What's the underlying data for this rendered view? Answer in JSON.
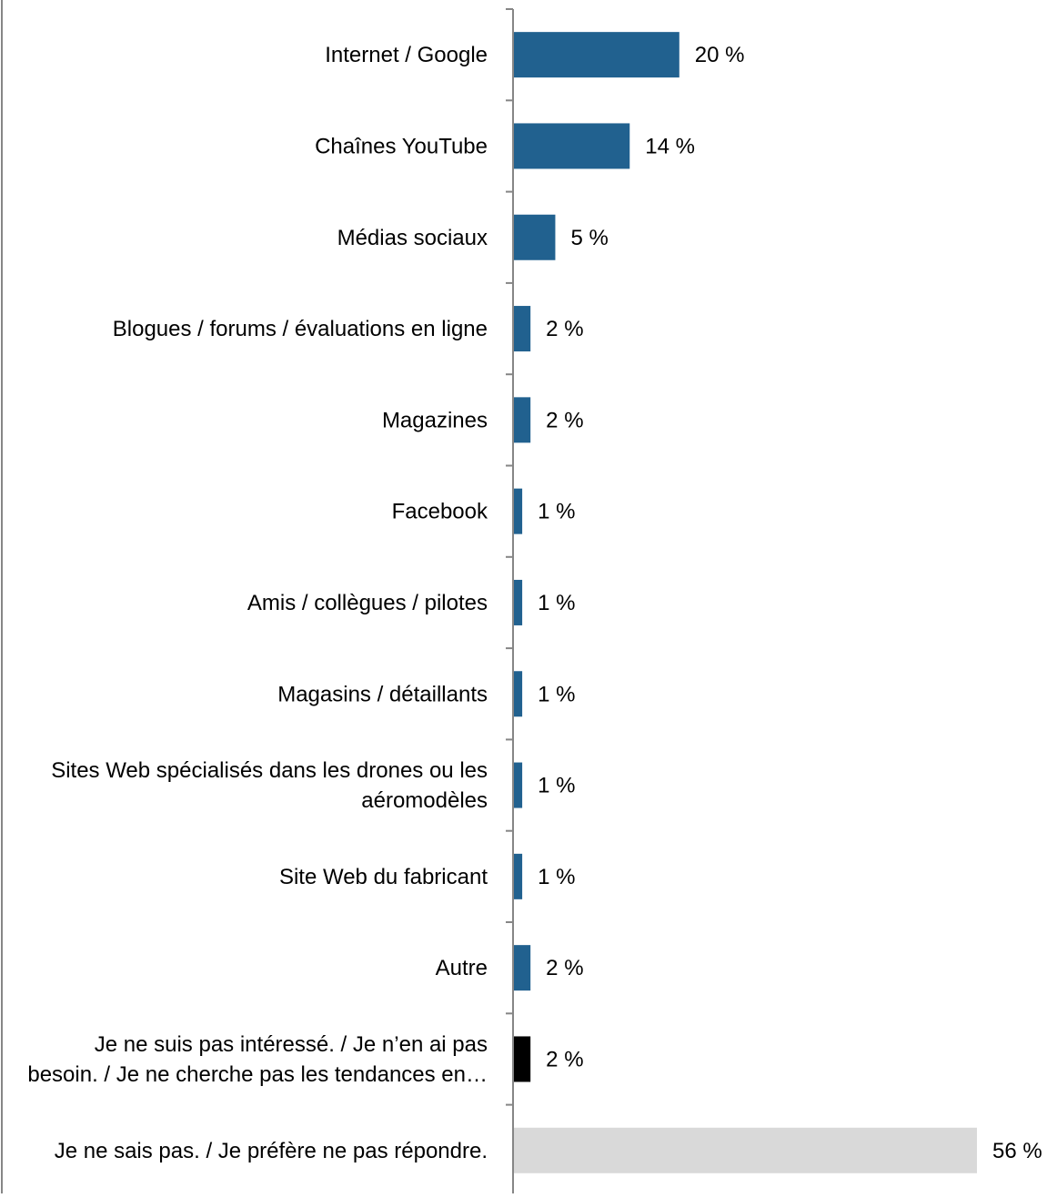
{
  "chart_data": {
    "type": "bar",
    "orientation": "horizontal",
    "categories": [
      [
        "Internet / Google"
      ],
      [
        "Chaînes YouTube"
      ],
      [
        "Médias sociaux"
      ],
      [
        "Blogues / forums / évaluations en ligne"
      ],
      [
        "Magazines"
      ],
      [
        "Facebook"
      ],
      [
        "Amis / collègues / pilotes"
      ],
      [
        "Magasins / détaillants"
      ],
      [
        "Sites Web spécialisés dans les drones ou les",
        "aéromodèles"
      ],
      [
        "Site Web du fabricant"
      ],
      [
        "Autre"
      ],
      [
        "Je ne suis pas intéressé. / Je n’en ai pas",
        "besoin. / Je ne cherche pas les tendances en…"
      ],
      [
        "Je ne sais pas. / Je préfère ne pas répondre."
      ]
    ],
    "values": [
      20,
      14,
      5,
      2,
      2,
      1,
      1,
      1,
      1,
      1,
      2,
      2,
      56
    ],
    "data_labels": [
      "20 %",
      "14 %",
      "5 %",
      "2 %",
      "2 %",
      "1 %",
      "1 %",
      "1 %",
      "1 %",
      "1 %",
      "2 %",
      "2 %",
      "56 %"
    ],
    "bar_colors": [
      "#21618f",
      "#21618f",
      "#21618f",
      "#21618f",
      "#21618f",
      "#21618f",
      "#21618f",
      "#21618f",
      "#21618f",
      "#21618f",
      "#21618f",
      "#000000",
      "#d9d9d9"
    ],
    "xlim": [
      0,
      56
    ],
    "axis_color": "#868686",
    "grid": false,
    "legend": "none"
  }
}
